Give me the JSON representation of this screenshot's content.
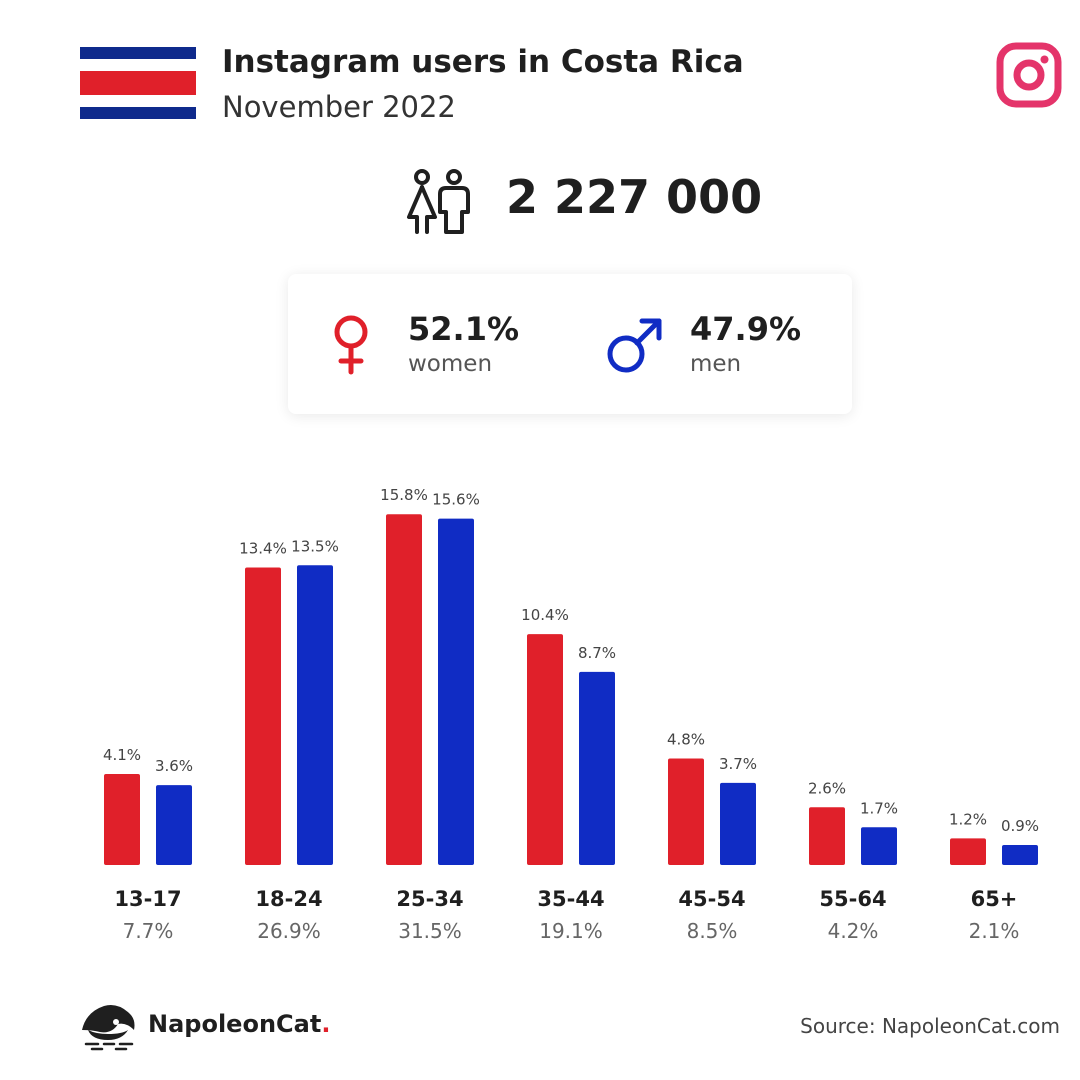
{
  "header": {
    "title": "Instagram users in Costa Rica",
    "subtitle": "November 2022"
  },
  "total_users": "2 227 000",
  "gender": {
    "women_pct": "52.1%",
    "women_label": "women",
    "men_pct": "47.9%",
    "men_label": "men"
  },
  "colors": {
    "women": "#e0202a",
    "men": "#102cc4",
    "instagram": "#e4346a"
  },
  "icons": [
    "costa-rica-flag-icon",
    "instagram-icon",
    "users-icon",
    "female-icon",
    "male-icon",
    "napoleoncat-logo-icon"
  ],
  "chart_data": {
    "type": "bar",
    "categories": [
      "13-17",
      "18-24",
      "25-34",
      "35-44",
      "45-54",
      "55-64",
      "65+"
    ],
    "category_totals": [
      "7.7%",
      "26.9%",
      "31.5%",
      "19.1%",
      "8.5%",
      "4.2%",
      "2.1%"
    ],
    "series": [
      {
        "name": "women",
        "values": [
          4.1,
          13.4,
          15.8,
          10.4,
          4.8,
          2.6,
          1.2
        ]
      },
      {
        "name": "men",
        "values": [
          3.6,
          13.5,
          15.6,
          8.7,
          3.7,
          1.7,
          0.9
        ]
      }
    ],
    "unit": "%",
    "grid": false
  },
  "footer": {
    "brand": "NapoleonCat",
    "brand_dot": ".",
    "source": "Source: NapoleonCat.com"
  }
}
